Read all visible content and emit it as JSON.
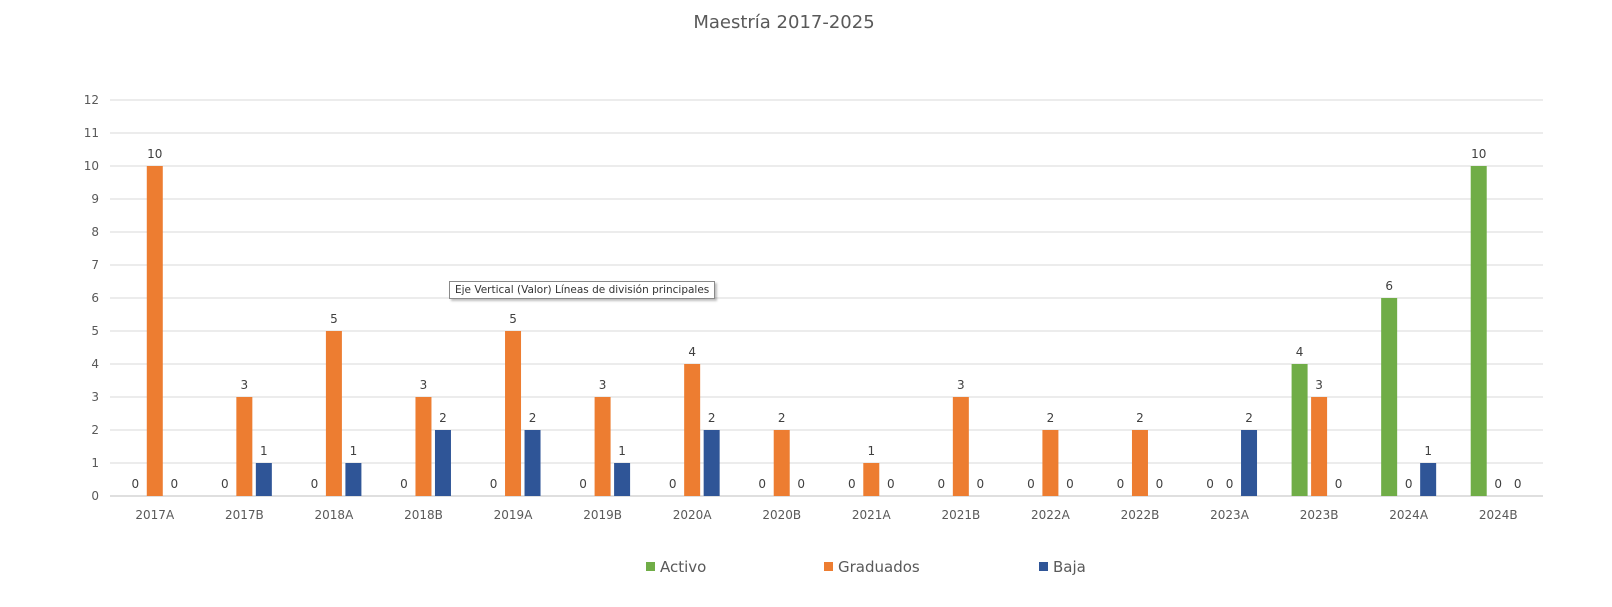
{
  "tooltip": "Eje Vertical (Valor)  Líneas de división principales",
  "chart_data": {
    "type": "bar",
    "title": "Maestría 2017-2025",
    "xlabel": "",
    "ylabel": "",
    "ylim": [
      0,
      12
    ],
    "yticks": [
      0,
      1,
      2,
      3,
      4,
      5,
      6,
      7,
      8,
      9,
      10,
      11,
      12
    ],
    "grid": true,
    "legend_position": "bottom",
    "categories": [
      "2017A",
      "2017B",
      "2018A",
      "2018B",
      "2019A",
      "2019B",
      "2020A",
      "2020B",
      "2021A",
      "2021B",
      "2022A",
      "2022B",
      "2023A",
      "2023B",
      "2024A",
      "2024B"
    ],
    "series": [
      {
        "name": "Activo",
        "color": "#70ad47",
        "values": [
          0,
          0,
          0,
          0,
          0,
          0,
          0,
          0,
          0,
          0,
          0,
          0,
          0,
          4,
          6,
          10
        ]
      },
      {
        "name": "Graduados",
        "color": "#ed7d31",
        "values": [
          10,
          3,
          5,
          3,
          5,
          3,
          4,
          2,
          1,
          3,
          2,
          2,
          0,
          3,
          0,
          0
        ]
      },
      {
        "name": "Baja",
        "color": "#2f5597",
        "values": [
          0,
          1,
          1,
          2,
          2,
          1,
          2,
          0,
          0,
          0,
          0,
          0,
          2,
          0,
          1,
          0
        ]
      }
    ]
  }
}
